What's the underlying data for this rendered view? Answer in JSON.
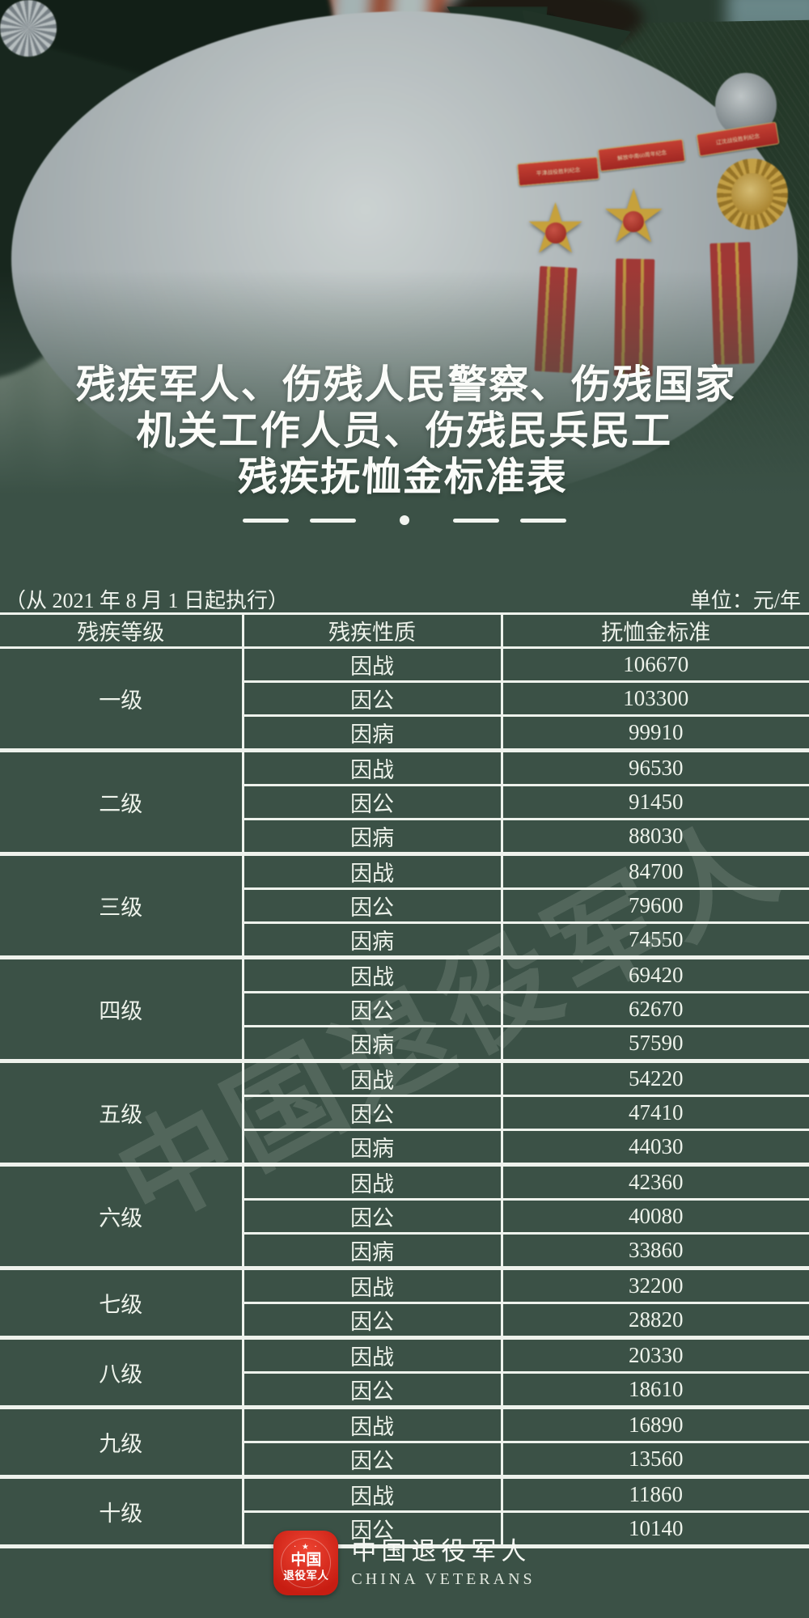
{
  "colors": {
    "background": "#3b5146",
    "table_line": "#eef2ec",
    "title_text": "#fbfcf9",
    "logo_red": "#d9261c",
    "ribbon_red": "#c5302c",
    "gold": "#dcae44"
  },
  "title": {
    "line1": "残疾军人、伤残人民警察、伤残国家",
    "line2": "机关工作人员、伤残民兵民工",
    "line3": "残疾抚恤金标准表"
  },
  "meta": {
    "effective_date": "（从 2021 年 8 月 1 日起执行）",
    "unit": "单位：元/年"
  },
  "table": {
    "headers": [
      "残疾等级",
      "残疾性质",
      "抚恤金标准"
    ],
    "groups": [
      {
        "level": "一级",
        "rows": [
          {
            "nature": "因战",
            "amount": "106670"
          },
          {
            "nature": "因公",
            "amount": "103300"
          },
          {
            "nature": "因病",
            "amount": "99910"
          }
        ]
      },
      {
        "level": "二级",
        "rows": [
          {
            "nature": "因战",
            "amount": "96530"
          },
          {
            "nature": "因公",
            "amount": "91450"
          },
          {
            "nature": "因病",
            "amount": "88030"
          }
        ]
      },
      {
        "level": "三级",
        "rows": [
          {
            "nature": "因战",
            "amount": "84700"
          },
          {
            "nature": "因公",
            "amount": "79600"
          },
          {
            "nature": "因病",
            "amount": "74550"
          }
        ]
      },
      {
        "level": "四级",
        "rows": [
          {
            "nature": "因战",
            "amount": "69420"
          },
          {
            "nature": "因公",
            "amount": "62670"
          },
          {
            "nature": "因病",
            "amount": "57590"
          }
        ]
      },
      {
        "level": "五级",
        "rows": [
          {
            "nature": "因战",
            "amount": "54220"
          },
          {
            "nature": "因公",
            "amount": "47410"
          },
          {
            "nature": "因病",
            "amount": "44030"
          }
        ]
      },
      {
        "level": "六级",
        "rows": [
          {
            "nature": "因战",
            "amount": "42360"
          },
          {
            "nature": "因公",
            "amount": "40080"
          },
          {
            "nature": "因病",
            "amount": "33860"
          }
        ]
      },
      {
        "level": "七级",
        "rows": [
          {
            "nature": "因战",
            "amount": "32200"
          },
          {
            "nature": "因公",
            "amount": "28820"
          }
        ]
      },
      {
        "level": "八级",
        "rows": [
          {
            "nature": "因战",
            "amount": "20330"
          },
          {
            "nature": "因公",
            "amount": "18610"
          }
        ]
      },
      {
        "level": "九级",
        "rows": [
          {
            "nature": "因战",
            "amount": "16890"
          },
          {
            "nature": "因公",
            "amount": "13560"
          }
        ]
      },
      {
        "level": "十级",
        "rows": [
          {
            "nature": "因战",
            "amount": "11860"
          },
          {
            "nature": "因公",
            "amount": "10140"
          }
        ]
      }
    ]
  },
  "photo": {
    "ribbon_labels": [
      "平津战役胜利纪念",
      "解放中南60周年纪念",
      "辽沈战役胜利纪念"
    ]
  },
  "watermark": {
    "text": "中国退役军人"
  },
  "footer": {
    "badge": {
      "stars": "· ★ ·",
      "line1": "中国",
      "line2": "退役军人"
    },
    "name_cn": "中国退役军人",
    "name_en": "CHINA VETERANS"
  }
}
